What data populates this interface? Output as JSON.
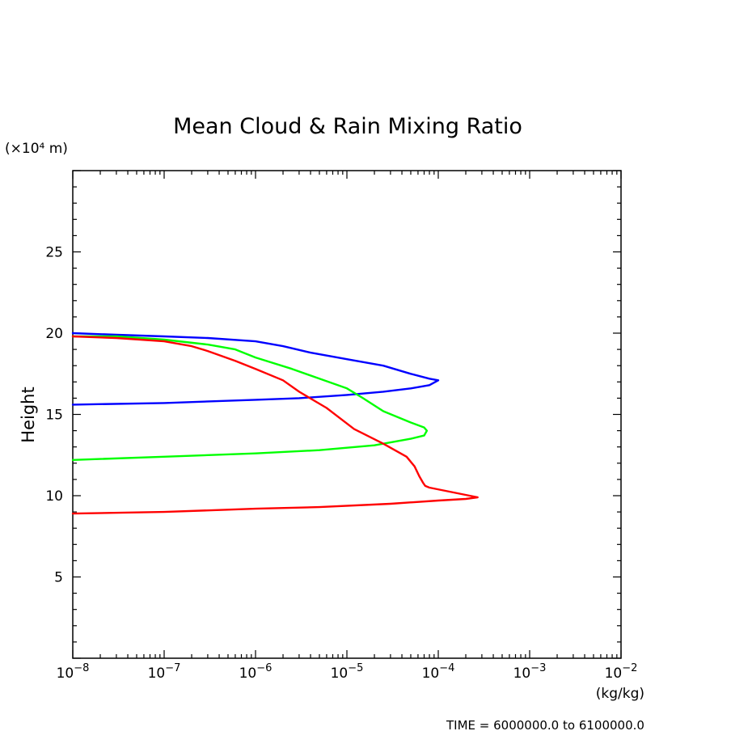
{
  "chart_data": {
    "type": "line",
    "title": "Mean Cloud & Rain Mixing Ratio",
    "ylabel": "Height",
    "yunit": "(×10⁴ m)",
    "xunit": "(kg/kg)",
    "footer": "TIME = 6000000.0 to 6100000.0",
    "xscale": "log",
    "xlim": [
      1e-08,
      0.01
    ],
    "ylim": [
      0,
      30
    ],
    "xticks": [
      {
        "value": 1e-08,
        "base": "10",
        "exp": "−8"
      },
      {
        "value": 1e-07,
        "base": "10",
        "exp": "−7"
      },
      {
        "value": 1e-06,
        "base": "10",
        "exp": "−6"
      },
      {
        "value": 1e-05,
        "base": "10",
        "exp": "−5"
      },
      {
        "value": 0.0001,
        "base": "10",
        "exp": "−4"
      },
      {
        "value": 0.001,
        "base": "10",
        "exp": "−3"
      },
      {
        "value": 0.01,
        "base": "10",
        "exp": "−2"
      }
    ],
    "yticks": [
      {
        "value": 5,
        "label": "5"
      },
      {
        "value": 10,
        "label": "10"
      },
      {
        "value": 15,
        "label": "15"
      },
      {
        "value": 20,
        "label": "20"
      },
      {
        "value": 25,
        "label": "25"
      }
    ],
    "grid": false,
    "series": [
      {
        "color": "#0000ff",
        "x": [
          1e-08,
          3e-08,
          1e-07,
          3e-07,
          1e-06,
          2e-06,
          4e-06,
          1e-05,
          2.5e-05,
          5e-05,
          8e-05,
          0.0001,
          8e-05,
          5e-05,
          2.5e-05,
          1e-05,
          3e-06,
          1e-06,
          1e-07,
          1e-08
        ],
        "y": [
          20.0,
          19.9,
          19.8,
          19.7,
          19.5,
          19.2,
          18.8,
          18.4,
          18.0,
          17.5,
          17.2,
          17.1,
          16.8,
          16.6,
          16.4,
          16.2,
          16.0,
          15.9,
          15.7,
          15.6
        ]
      },
      {
        "color": "#00ff00",
        "x": [
          1e-08,
          3e-08,
          1e-07,
          3e-07,
          6e-07,
          1e-06,
          2.5e-06,
          5e-06,
          1e-05,
          1.5e-05,
          2.5e-05,
          5e-05,
          7e-05,
          7.5e-05,
          7e-05,
          5e-05,
          2e-05,
          5e-06,
          1e-06,
          1e-07,
          1e-08
        ],
        "y": [
          19.8,
          19.8,
          19.6,
          19.3,
          19.0,
          18.5,
          17.8,
          17.2,
          16.6,
          16.0,
          15.2,
          14.5,
          14.2,
          14.0,
          13.7,
          13.5,
          13.1,
          12.8,
          12.6,
          12.4,
          12.2
        ]
      },
      {
        "color": "#ff0000",
        "x": [
          1e-08,
          3e-08,
          1e-07,
          2e-07,
          3e-07,
          6e-07,
          1e-06,
          2e-06,
          3e-06,
          6e-06,
          1.2e-05,
          2.5e-05,
          4.5e-05,
          5.5e-05,
          6.2e-05,
          6.8e-05,
          7.2e-05,
          8e-05,
          0.00012,
          0.00018,
          0.00027,
          0.0002,
          0.0001,
          3e-05,
          5e-06,
          1e-06,
          1e-07,
          1e-08
        ],
        "y": [
          19.8,
          19.7,
          19.5,
          19.2,
          18.9,
          18.3,
          17.8,
          17.1,
          16.4,
          15.4,
          14.1,
          13.2,
          12.4,
          11.8,
          11.2,
          10.8,
          10.6,
          10.5,
          10.3,
          10.1,
          9.9,
          9.8,
          9.7,
          9.5,
          9.3,
          9.2,
          9.0,
          8.9
        ]
      }
    ]
  }
}
